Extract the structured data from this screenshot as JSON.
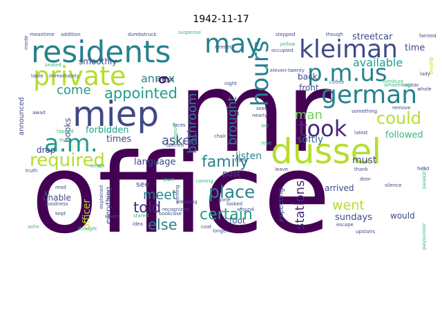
{
  "title": "1942-11-17",
  "colors": {
    "dark_purple": "#440154",
    "purple": "#482878",
    "indigo": "#3e4989",
    "blue": "#31688e",
    "teal": "#26828e",
    "teal_green": "#1f9e89",
    "green": "#35b779",
    "light_green": "#6ece58",
    "yellow_green": "#b5de2b"
  },
  "words": [
    {
      "text": "office",
      "color": "dark_purple"
    },
    {
      "text": "mr",
      "color": "dark_purple"
    },
    {
      "text": "dussel",
      "color": "yellow_green"
    },
    {
      "text": "miep",
      "color": "indigo"
    },
    {
      "text": "residents",
      "color": "teal"
    },
    {
      "text": "private",
      "color": "yellow_green"
    },
    {
      "text": "kleiman",
      "color": "indigo"
    },
    {
      "text": "german",
      "color": "teal"
    },
    {
      "text": "p.m.us",
      "color": "teal"
    },
    {
      "text": "may",
      "color": "teal"
    },
    {
      "text": "a.m.",
      "color": "teal_green"
    },
    {
      "text": "hours",
      "color": "teal"
    },
    {
      "text": "took",
      "color": "purple"
    },
    {
      "text": "required",
      "color": "yellow_green"
    },
    {
      "text": "appointed",
      "color": "teal_green"
    },
    {
      "text": "could",
      "color": "yellow_green"
    },
    {
      "text": "place",
      "color": "teal"
    },
    {
      "text": "family",
      "color": "teal"
    },
    {
      "text": "certain",
      "color": "teal_green"
    },
    {
      "text": "brought",
      "color": "teal"
    },
    {
      "text": "bathroom",
      "color": "teal"
    },
    {
      "text": "stations",
      "color": "purple"
    },
    {
      "text": "told",
      "color": "purple"
    },
    {
      "text": "else",
      "color": "teal"
    },
    {
      "text": "meet",
      "color": "teal"
    },
    {
      "text": "asked",
      "color": "indigo"
    },
    {
      "text": "went",
      "color": "yellow_green"
    },
    {
      "text": "available",
      "color": "teal_green"
    },
    {
      "text": "come",
      "color": "teal_green"
    },
    {
      "text": "annex",
      "color": "teal"
    },
    {
      "text": "man",
      "color": "light_green"
    },
    {
      "text": "softly",
      "color": "blue"
    },
    {
      "text": "listen",
      "color": "teal"
    },
    {
      "text": "must",
      "color": "indigo"
    },
    {
      "text": "followed",
      "color": "green"
    },
    {
      "text": "officer",
      "color": "yellow_green"
    },
    {
      "text": "sundays",
      "color": "indigo"
    },
    {
      "text": "smoothly",
      "color": "indigo"
    },
    {
      "text": "forbidden",
      "color": "teal_green"
    },
    {
      "text": "language",
      "color": "indigo"
    },
    {
      "text": "times",
      "color": "indigo"
    },
    {
      "text": "streetcar",
      "color": "indigo"
    },
    {
      "text": "time",
      "color": "indigo"
    },
    {
      "text": "during",
      "color": "yellow_green"
    },
    {
      "text": "back",
      "color": "indigo"
    },
    {
      "text": "front",
      "color": "indigo"
    },
    {
      "text": "arrived",
      "color": "indigo"
    },
    {
      "text": "would",
      "color": "indigo"
    },
    {
      "text": "post",
      "color": "indigo"
    },
    {
      "text": "foot",
      "color": "indigo"
    },
    {
      "text": "drop",
      "color": "indigo"
    },
    {
      "text": "unable",
      "color": "indigo"
    },
    {
      "text": "books",
      "color": "indigo"
    },
    {
      "text": "see",
      "color": "indigo"
    },
    {
      "text": "expecting",
      "color": "indigo"
    },
    {
      "text": "everything",
      "color": "indigo"
    },
    {
      "text": "announced",
      "color": "indigo"
    },
    {
      "text": "6",
      "color": "dark_purple"
    },
    {
      "text": "meantime",
      "color": "indigo"
    },
    {
      "text": "addition",
      "color": "indigo"
    },
    {
      "text": "dumbstruck",
      "color": "indigo"
    },
    {
      "text": "suspense",
      "color": "green"
    },
    {
      "text": "stepped",
      "color": "indigo"
    },
    {
      "text": "though",
      "color": "indigo"
    },
    {
      "text": "fainted",
      "color": "indigo"
    },
    {
      "text": "needed",
      "color": "indigo"
    },
    {
      "text": "yellow",
      "color": "green"
    },
    {
      "text": "occupied",
      "color": "indigo"
    },
    {
      "text": "inside",
      "color": "indigo"
    },
    {
      "text": "seated",
      "color": "green"
    },
    {
      "text": "table",
      "color": "indigo"
    },
    {
      "text": "immediately",
      "color": "indigo"
    },
    {
      "text": "coffee",
      "color": "teal"
    },
    {
      "text": "lady",
      "color": "indigo"
    },
    {
      "text": "cognac",
      "color": "indigo"
    },
    {
      "text": "await",
      "color": "indigo"
    },
    {
      "text": "latest",
      "color": "indigo"
    },
    {
      "text": "whole",
      "color": "indigo"
    },
    {
      "text": "remove",
      "color": "indigo"
    },
    {
      "text": "furniture",
      "color": "green"
    },
    {
      "text": "amazement",
      "color": "green"
    },
    {
      "text": "seen",
      "color": "indigo"
    },
    {
      "text": "nearly",
      "color": "indigo"
    },
    {
      "text": "something",
      "color": "indigo"
    },
    {
      "text": "eleven-twenty",
      "color": "indigo"
    },
    {
      "text": "chair",
      "color": "indigo"
    },
    {
      "text": "faces",
      "color": "indigo"
    },
    {
      "text": "opened",
      "color": "indigo"
    },
    {
      "text": "frank",
      "color": "indigo"
    },
    {
      "text": "thank",
      "color": "indigo"
    },
    {
      "text": "leave",
      "color": "indigo"
    },
    {
      "text": "head",
      "color": "indigo"
    },
    {
      "text": "door",
      "color": "indigo"
    },
    {
      "text": "silence",
      "color": "indigo"
    },
    {
      "text": "truth",
      "color": "indigo"
    },
    {
      "text": "read",
      "color": "indigo"
    },
    {
      "text": "goodness",
      "color": "indigo"
    },
    {
      "text": "kept",
      "color": "indigo"
    },
    {
      "text": "thought",
      "color": "green"
    },
    {
      "text": "astonished",
      "color": "green"
    },
    {
      "text": "upstairs",
      "color": "indigo"
    },
    {
      "text": "escape",
      "color": "indigo"
    },
    {
      "text": "longer",
      "color": "indigo"
    },
    {
      "text": "coat",
      "color": "indigo"
    },
    {
      "text": "idea",
      "color": "indigo"
    },
    {
      "text": "stared",
      "color": "green"
    },
    {
      "text": "explained",
      "color": "indigo"
    },
    {
      "text": "first",
      "color": "indigo"
    },
    {
      "text": "cleaning",
      "color": "indigo"
    },
    {
      "text": "bookcase",
      "color": "indigo"
    },
    {
      "text": "recognized",
      "color": "indigo"
    },
    {
      "text": "working",
      "color": "indigo"
    },
    {
      "text": "looked",
      "color": "indigo"
    },
    {
      "text": "around",
      "color": "indigo"
    },
    {
      "text": "gone",
      "color": "indigo"
    },
    {
      "text": "led",
      "color": "green"
    },
    {
      "text": "rose",
      "color": "green"
    },
    {
      "text": "coming",
      "color": "green"
    },
    {
      "text": "night",
      "color": "indigo"
    },
    {
      "text": "belgium",
      "color": "green"
    },
    {
      "text": "pretext",
      "color": "indigo"
    },
    {
      "text": "sent",
      "color": "green"
    },
    {
      "text": "sat",
      "color": "green"
    },
    {
      "text": "tapped",
      "color": "green"
    },
    {
      "text": "thing",
      "color": "green"
    },
    {
      "text": "11",
      "color": "green"
    },
    {
      "text": "ashn",
      "color": "green"
    },
    {
      "text": "seven",
      "color": "indigo"
    },
    {
      "text": "start",
      "color": "green"
    },
    {
      "text": "scattered",
      "color": "green"
    }
  ]
}
